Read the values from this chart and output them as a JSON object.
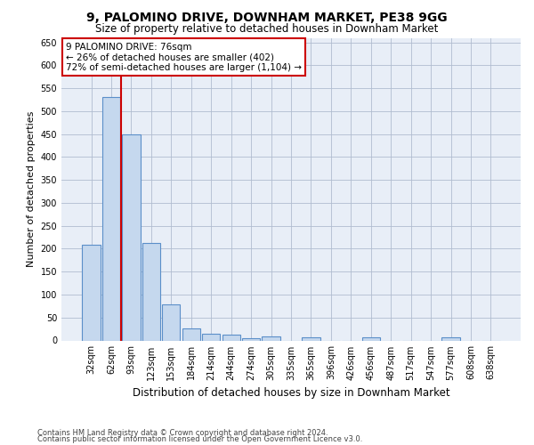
{
  "title": "9, PALOMINO DRIVE, DOWNHAM MARKET, PE38 9GG",
  "subtitle": "Size of property relative to detached houses in Downham Market",
  "xlabel": "Distribution of detached houses by size in Downham Market",
  "ylabel": "Number of detached properties",
  "categories": [
    "32sqm",
    "62sqm",
    "93sqm",
    "123sqm",
    "153sqm",
    "184sqm",
    "214sqm",
    "244sqm",
    "274sqm",
    "305sqm",
    "335sqm",
    "365sqm",
    "396sqm",
    "426sqm",
    "456sqm",
    "487sqm",
    "517sqm",
    "547sqm",
    "577sqm",
    "608sqm",
    "638sqm"
  ],
  "values": [
    208,
    530,
    450,
    212,
    78,
    26,
    15,
    12,
    5,
    8,
    0,
    6,
    0,
    0,
    6,
    0,
    0,
    0,
    6,
    0,
    0
  ],
  "bar_color": "#c5d8ee",
  "bar_edge_color": "#5b8fc9",
  "vline_x_index": 1.5,
  "vline_color": "#cc0000",
  "annotation_text": "9 PALOMINO DRIVE: 76sqm\n← 26% of detached houses are smaller (402)\n72% of semi-detached houses are larger (1,104) →",
  "annotation_box_facecolor": "#ffffff",
  "annotation_box_edgecolor": "#cc0000",
  "ylim": [
    0,
    660
  ],
  "yticks": [
    0,
    50,
    100,
    150,
    200,
    250,
    300,
    350,
    400,
    450,
    500,
    550,
    600,
    650
  ],
  "footer_line1": "Contains HM Land Registry data © Crown copyright and database right 2024.",
  "footer_line2": "Contains public sector information licensed under the Open Government Licence v3.0.",
  "bg_color": "#e8eef7",
  "title_fontsize": 10,
  "subtitle_fontsize": 8.5,
  "ylabel_fontsize": 8,
  "xlabel_fontsize": 8.5,
  "tick_fontsize": 7,
  "annotation_fontsize": 7.5,
  "footer_fontsize": 6
}
